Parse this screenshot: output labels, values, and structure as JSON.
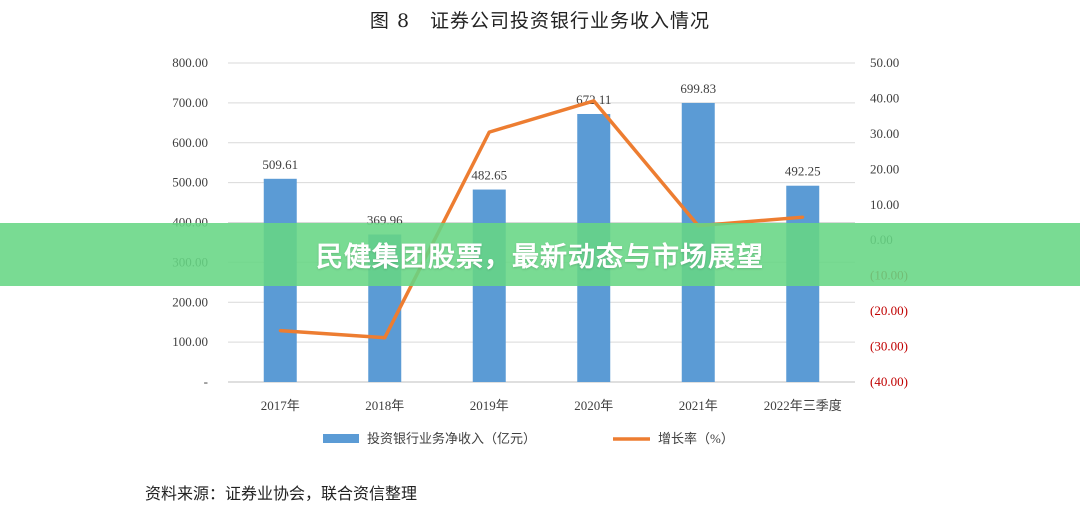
{
  "chart_data": {
    "type": "bar+line",
    "title": "图 8　证券公司投资银行业务收入情况",
    "categories": [
      "2017年",
      "2018年",
      "2019年",
      "2020年",
      "2021年",
      "2022年三季度"
    ],
    "series": [
      {
        "name": "投资银行业务净收入（亿元）",
        "type": "bar",
        "axis": "left",
        "color": "#5b9bd5",
        "values": [
          509.61,
          369.96,
          482.65,
          672.11,
          699.83,
          492.25
        ],
        "labels": [
          "509.61",
          "369.96",
          "482.65",
          "672.11",
          "699.83",
          "492.25"
        ]
      },
      {
        "name": "增长率（%）",
        "type": "line",
        "axis": "right",
        "color": "#ed7d31",
        "values": [
          -25.5,
          -27.5,
          30.5,
          39.3,
          4.1,
          6.5
        ]
      }
    ],
    "y_left": {
      "ylim": [
        0,
        800
      ],
      "ticks": [
        0,
        100,
        200,
        300,
        400,
        500,
        600,
        700,
        800
      ],
      "tick_labels": [
        "-",
        "100.00",
        "200.00",
        "300.00",
        "400.00",
        "500.00",
        "600.00",
        "700.00",
        "800.00"
      ]
    },
    "y_right": {
      "ylim": [
        -40,
        50
      ],
      "ticks": [
        -40,
        -30,
        -20,
        -10,
        0,
        10,
        20,
        30,
        40,
        50
      ],
      "tick_labels": [
        "(40.00)",
        "(30.00)",
        "(20.00)",
        "(10.00)",
        "0.00",
        "10.00",
        "20.00",
        "30.00",
        "40.00",
        "50.00"
      ],
      "negative_color": "#c00000",
      "positive_color": "#404040"
    },
    "grid": true,
    "legend": "bottom"
  },
  "source": "资料来源：证券业协会，联合资信整理",
  "banner": {
    "text": "民健集团股票，最新动态与市场展望",
    "color": "#66d684"
  }
}
